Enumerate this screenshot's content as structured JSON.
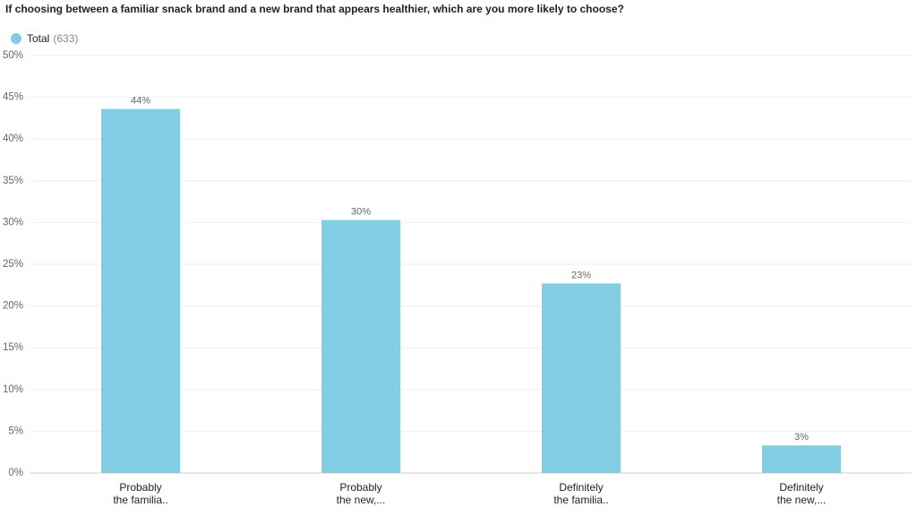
{
  "chart_data": {
    "type": "bar",
    "title": "If choosing between a familiar snack brand and a new brand that appears healthier, which are you more likely to choose?",
    "legend_count": "(633)",
    "categories": [
      [
        "Probably",
        "the familia.."
      ],
      [
        "Probably",
        "the new,..."
      ],
      [
        "Definitely",
        "the familia.."
      ],
      [
        "Definitely",
        "the new,..."
      ]
    ],
    "series": [
      {
        "name": "Total",
        "color": "#81cee4",
        "values": [
          43.6,
          30.3,
          22.7,
          3.3
        ],
        "value_labels": [
          "44%",
          "30%",
          "23%",
          "3%"
        ]
      }
    ],
    "ylim": [
      0,
      50
    ],
    "yticks": [
      {
        "value": 0,
        "label": "0%"
      },
      {
        "value": 5,
        "label": "5%"
      },
      {
        "value": 10,
        "label": "10%"
      },
      {
        "value": 15,
        "label": "15%"
      },
      {
        "value": 20,
        "label": "20%"
      },
      {
        "value": 25,
        "label": "25%"
      },
      {
        "value": 30,
        "label": "30%"
      },
      {
        "value": 35,
        "label": "35%"
      },
      {
        "value": 40,
        "label": "40%"
      },
      {
        "value": 45,
        "label": "45%"
      },
      {
        "value": 50,
        "label": "50%"
      }
    ],
    "grid": true
  }
}
